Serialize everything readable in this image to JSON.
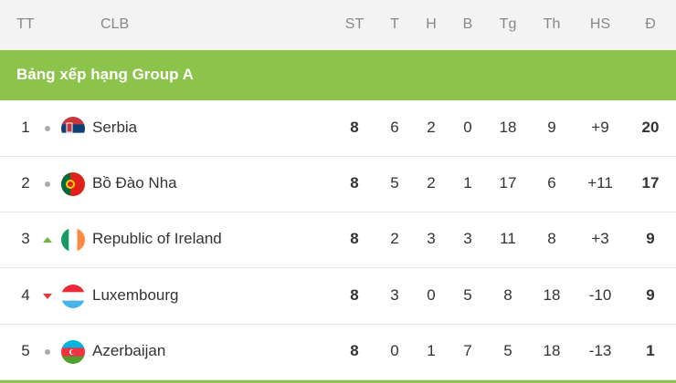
{
  "header": [
    "TT",
    "CLB",
    "ST",
    "T",
    "H",
    "B",
    "Tg",
    "Th",
    "HS",
    "Đ"
  ],
  "group_title": "Bảng xếp hạng Group A",
  "table": {
    "rows": [
      [
        1,
        "Serbia",
        8,
        6,
        2,
        0,
        18,
        9,
        "+9",
        20
      ],
      [
        2,
        "Bồ Đào Nha",
        8,
        5,
        2,
        1,
        17,
        6,
        "+11",
        17
      ],
      [
        3,
        "Republic of Ireland",
        8,
        2,
        3,
        3,
        11,
        8,
        "+3",
        9
      ],
      [
        4,
        "Luxembourg",
        8,
        3,
        0,
        5,
        8,
        18,
        -10,
        9
      ],
      [
        5,
        "Azerbaijan",
        8,
        0,
        1,
        7,
        5,
        18,
        -13,
        1
      ]
    ]
  }
}
